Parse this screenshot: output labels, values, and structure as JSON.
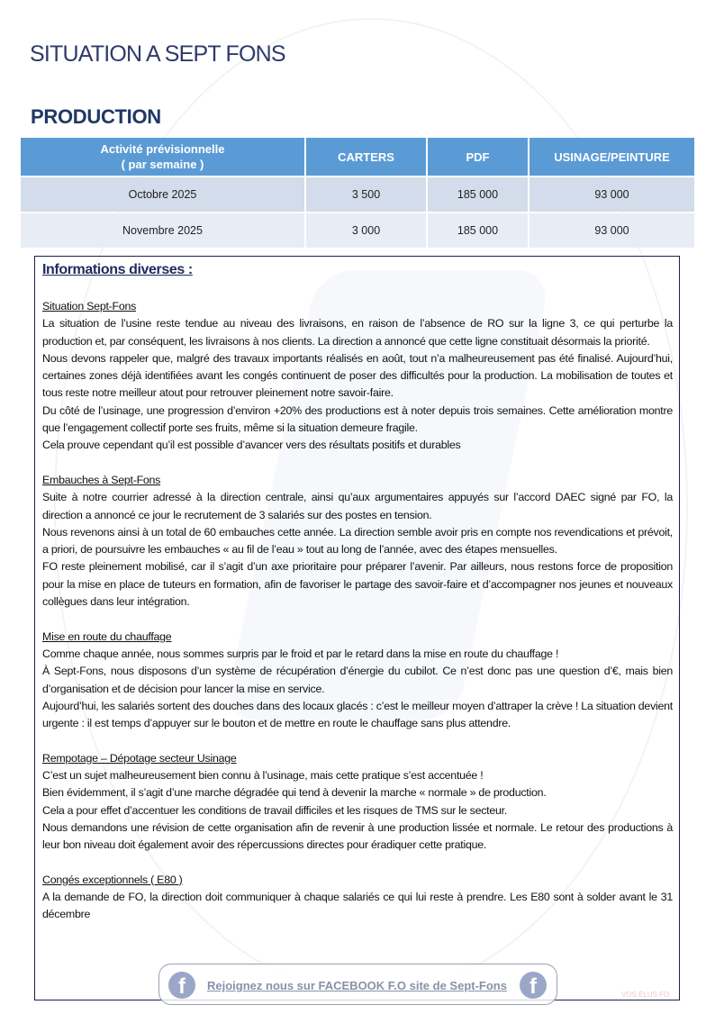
{
  "title": "SITUATION A SEPT FONS",
  "section": "PRODUCTION",
  "table": {
    "headers": [
      "Activité prévisionnelle\n( par semaine )",
      "CARTERS",
      "PDF",
      "USINAGE/PEINTURE"
    ],
    "rows": [
      [
        "Octobre 2025",
        "3 500",
        "185 000",
        "93 000"
      ],
      [
        "Novembre 2025",
        "3 000",
        "185 000",
        "93 000"
      ]
    ]
  },
  "info": {
    "heading": "Informations diverses :",
    "sections": [
      {
        "title": "Situation Sept-Fons",
        "paragraphs": [
          "La situation de l’usine reste tendue au niveau des livraisons, en raison de l’absence de RO sur la ligne 3, ce qui perturbe la production et, par conséquent, les livraisons à nos clients. La direction a annoncé que cette ligne constituait désormais la priorité.",
          "Nous devons rappeler que, malgré des travaux importants réalisés en août, tout n’a malheureusement pas été finalisé. Aujourd’hui, certaines zones déjà identifiées avant les congés continuent de poser des difficultés pour la production. La mobilisation de toutes et tous reste notre meilleur atout pour retrouver pleinement notre savoir-faire.",
          "Du côté de l’usinage, une progression d’environ +20% des productions est à noter depuis trois semaines. Cette amélioration montre que l’engagement collectif porte ses fruits, même si la situation demeure fragile.",
          "Cela prouve cependant qu’il est possible d’avancer vers des résultats positifs et durables"
        ]
      },
      {
        "title": "Embauches à Sept-Fons",
        "paragraphs": [
          "Suite à notre courrier adressé à la direction centrale, ainsi qu’aux argumentaires appuyés sur l’accord DAEC signé par FO, la direction a annoncé ce jour le recrutement de 3 salariés sur des postes en tension.",
          "Nous revenons ainsi à un total de 60 embauches cette année. La direction semble avoir pris en compte nos revendications et prévoit, a priori, de poursuivre les embauches « au fil de l’eau » tout au long de l’année, avec des étapes mensuelles.",
          "FO reste pleinement mobilisé, car il s’agit d’un axe prioritaire pour préparer l’avenir. Par ailleurs, nous restons force de proposition pour la mise en place de tuteurs en formation, afin de favoriser le partage des savoir-faire et d’accompagner nos jeunes et nouveaux collègues dans leur intégration."
        ]
      },
      {
        "title": "Mise en route du chauffage",
        "paragraphs": [
          "Comme chaque année, nous sommes surpris par le froid et par le retard dans la mise en route du chauffage !",
          "À Sept-Fons, nous disposons d’un système de récupération d’énergie du cubilot. Ce n’est donc pas une question d’€, mais bien d’organisation et de décision pour lancer la mise en service.",
          "Aujourd’hui, les salariés sortent des douches dans des locaux glacés : c’est le meilleur moyen d’attraper la crève ! La situation devient urgente : il est temps d’appuyer sur le bouton et de mettre en route le chauffage sans plus attendre."
        ]
      },
      {
        "title": "Rempotage – Dépotage secteur Usinage",
        "paragraphs": [
          "C’est un sujet malheureusement bien connu à l’usinage, mais cette pratique s’est accentuée !",
          "Bien évidemment, il s’agit d’une marche dégradée qui tend à devenir la marche « normale » de production.",
          "Cela a pour effet d’accentuer les conditions de travail difficiles et les risques de TMS sur le secteur.",
          "Nous demandons une révision de cette organisation afin de revenir à une production lissée et normale. Le retour des productions à leur bon niveau doit également avoir des répercussions directes pour éradiquer cette pratique."
        ]
      },
      {
        "title": "Congés exceptionnels ( E80 )",
        "paragraphs": [
          "A la demande de FO, la direction doit communiquer à chaque salariés ce qui lui reste à prendre. Les E80 sont à solder avant le 31 décembre"
        ]
      }
    ]
  },
  "footer": {
    "facebook_text": "Rejoignez nous sur FACEBOOK  F.O site de Sept-Fons",
    "icon": "facebook-icon",
    "watermark": "VOS ÉLUS FO"
  },
  "colors": {
    "header_blue": "#5b9bd5",
    "title_navy": "#2f3a6b",
    "row_odd": "#d2dcea",
    "row_even": "#e8edf5"
  }
}
